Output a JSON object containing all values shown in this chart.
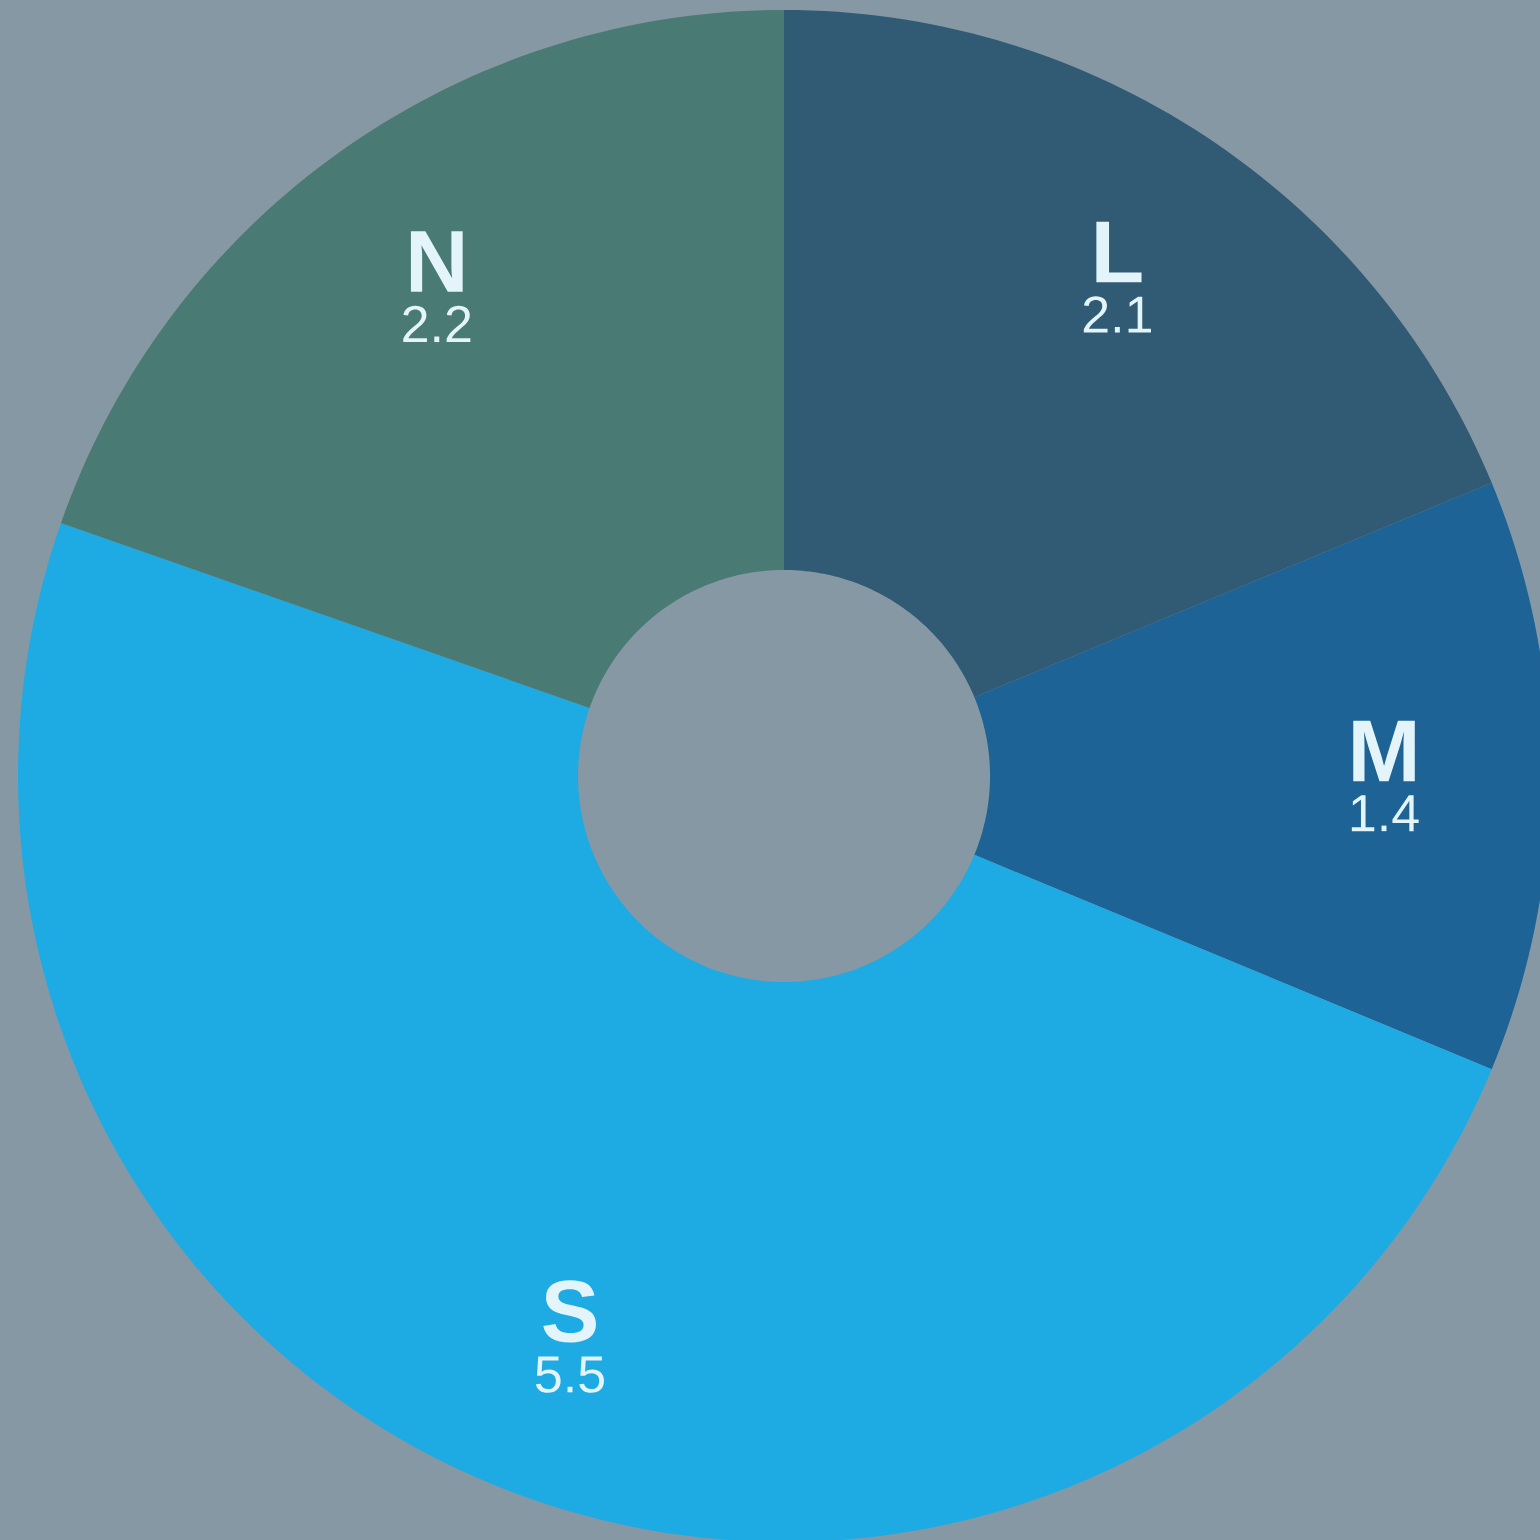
{
  "chart_data": {
    "type": "donut",
    "categories": [
      "L",
      "M",
      "S",
      "N"
    ],
    "values": [
      2.1,
      1.4,
      5.5,
      2.2
    ],
    "colors": [
      "#315b74",
      "#1d6396",
      "#1eabe3",
      "#4a7a74"
    ],
    "data_labels": true
  }
}
